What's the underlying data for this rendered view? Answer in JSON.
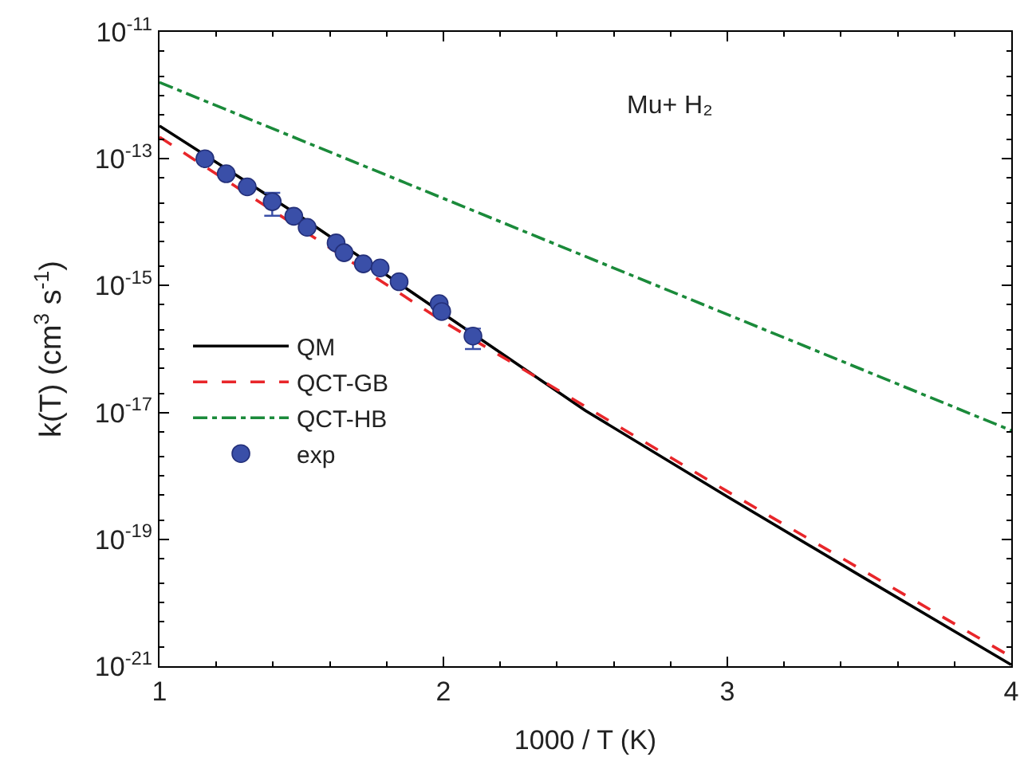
{
  "chart_data": {
    "type": "line",
    "xlabel": "1000 / T (K)",
    "ylabel": "k(T) (cm$^{3}$ s$^{-1}$)",
    "annotations": [
      "Mu+ H₂"
    ],
    "log": "y",
    "legend": "left",
    "xlim": [
      1,
      4
    ],
    "xticks": [
      1,
      2,
      3,
      4
    ],
    "ylim": [
      1e-21,
      1e-11
    ],
    "yticks": [
      {
        "value": 1e-21,
        "label": "10$^{-21}$"
      },
      {
        "value": 1e-19,
        "label": "10$^{-19}$"
      },
      {
        "value": 1e-17,
        "label": "10$^{-17}$"
      },
      {
        "value": 1e-15,
        "label": "10$^{-15}$"
      },
      {
        "value": 1e-13,
        "label": "10$^{-13}$"
      },
      {
        "value": 1e-11,
        "label": "10$^{-11}$"
      }
    ],
    "series": [
      {
        "name": "QM",
        "color": "#000000",
        "line_style": "solid",
        "marker": "none",
        "x": [
          1,
          1.5,
          2,
          2.5,
          3,
          3.5,
          4
        ],
        "values": [
          3.3e-13,
          1.2e-14,
          3.6e-16,
          1.07e-17,
          4.7e-19,
          2.2e-20,
          1.05e-21
        ]
      },
      {
        "name": "QCT-GB",
        "color": "#e8262a",
        "line_style": "dashed",
        "marker": "none",
        "x": [
          1,
          2,
          3,
          4
        ],
        "values": [
          2.2e-13,
          2.7e-16,
          5.7e-19,
          1.4e-21
        ]
      },
      {
        "name": "QCT-HB",
        "color": "#1a8a3a",
        "line_style": "dashdot",
        "marker": "none",
        "x": [
          1,
          4
        ],
        "values": [
          1.6e-12,
          5.2e-18
        ]
      },
      {
        "name": "exp",
        "type": "scatter",
        "color": "#3a4fa8",
        "marker": "circle",
        "x": [
          1.16,
          1.235,
          1.309,
          1.397,
          1.473,
          1.52,
          1.622,
          1.65,
          1.718,
          1.777,
          1.844,
          1.985,
          1.994,
          2.104
        ],
        "values": [
          1e-13,
          5.8e-14,
          3.6e-14,
          2.1e-14,
          1.24e-14,
          8.3e-15,
          4.7e-15,
          3.3e-15,
          2.2e-15,
          1.9e-15,
          1.15e-15,
          5.2e-16,
          3.9e-16,
          1.6e-16
        ],
        "errors": [
          null,
          null,
          null,
          [
            1.26e-14,
            2.9e-14
          ],
          null,
          null,
          null,
          null,
          null,
          null,
          null,
          null,
          null,
          [
            1e-16,
            2.1e-16
          ]
        ]
      }
    ]
  }
}
